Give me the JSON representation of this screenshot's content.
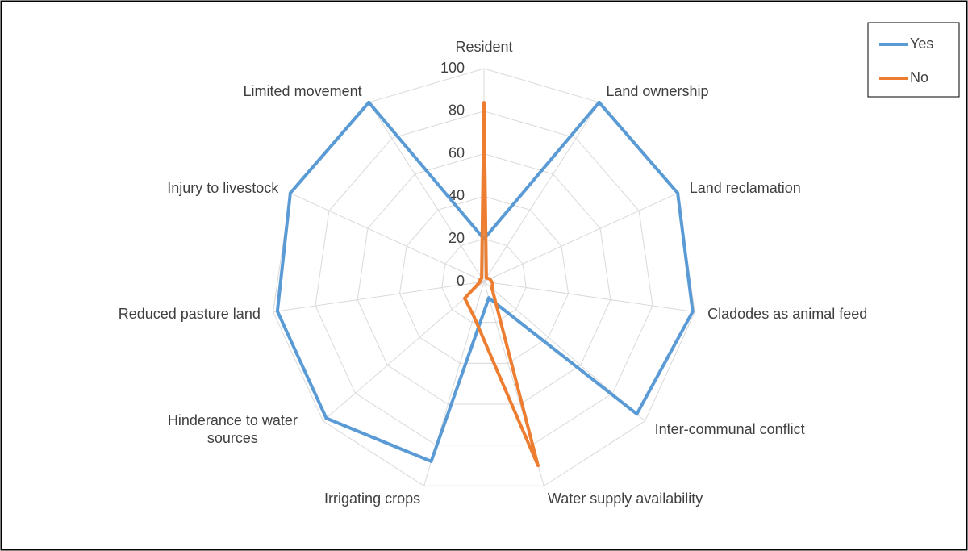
{
  "chart_data": {
    "type": "radar",
    "categories": [
      "Resident",
      "Land ownership",
      "Land reclamation",
      "Cladodes as animal feed",
      "Inter-communal conflict",
      "Water supply availability",
      "Irrigating crops",
      "Hinderance to water sources",
      "Reduced pasture land",
      "Injury to livestock",
      "Limited movement"
    ],
    "series": [
      {
        "name": "Yes",
        "color": "#5b9bd5",
        "values": [
          20,
          100,
          100,
          99,
          95,
          8,
          88,
          98,
          98,
          100,
          100
        ]
      },
      {
        "name": "No",
        "color": "#ed7d31",
        "values": [
          84,
          2,
          3,
          4,
          5,
          90,
          17,
          12,
          2,
          2,
          2
        ]
      }
    ],
    "ylim": [
      0,
      100
    ],
    "yticks": [
      0,
      20,
      40,
      60,
      80,
      100
    ],
    "grid": true,
    "legend": "top-right"
  }
}
